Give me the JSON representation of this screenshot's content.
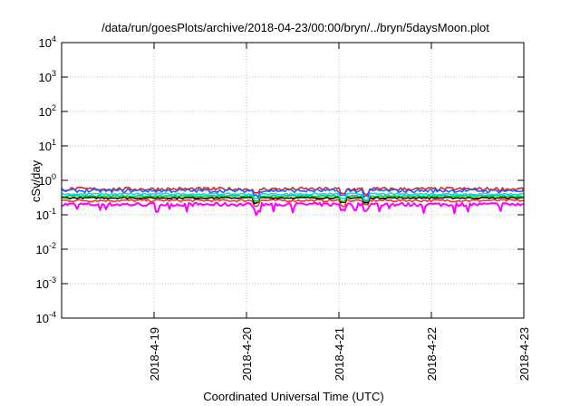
{
  "chart_data": {
    "type": "line",
    "title": "/data/run/goesPlots/archive/2018-04-23/00:00/bryn/../bryn/5daysMoon.plot",
    "xlabel": "Coordinated Universal Time (UTC)",
    "ylabel": "cSv/day",
    "y_scale": "log",
    "ylim": [
      0.0001,
      10000
    ],
    "y_ticks": [
      {
        "value": 0.0001,
        "base": "10",
        "exp": "-4"
      },
      {
        "value": 0.001,
        "base": "10",
        "exp": "-3"
      },
      {
        "value": 0.01,
        "base": "10",
        "exp": "-2"
      },
      {
        "value": 0.1,
        "base": "10",
        "exp": "-1"
      },
      {
        "value": 1,
        "base": "10",
        "exp": "0"
      },
      {
        "value": 10,
        "base": "10",
        "exp": "1"
      },
      {
        "value": 100,
        "base": "10",
        "exp": "2"
      },
      {
        "value": 1000,
        "base": "10",
        "exp": "3"
      },
      {
        "value": 10000,
        "base": "10",
        "exp": "4"
      }
    ],
    "xlim": [
      "2018-04-18T00:00",
      "2018-04-23T00:00"
    ],
    "x_ticks": [
      "2018-4-19",
      "2018-4-20",
      "2018-4-21",
      "2018-4-22",
      "2018-4-23"
    ],
    "grid": true,
    "series": [
      {
        "color": "#ff00ff",
        "base": 0.2,
        "jitter": 0.12,
        "dips": true
      },
      {
        "color": "#ff3030",
        "base": 0.26,
        "jitter": 0.08,
        "dips": false
      },
      {
        "color": "#000000",
        "base": 0.31,
        "jitter": 0.05,
        "dips": false
      },
      {
        "color": "#20c020",
        "base": 0.35,
        "jitter": 0.05,
        "dips": false
      },
      {
        "color": "#00e0e0",
        "base": 0.4,
        "jitter": 0.06,
        "dips": false
      },
      {
        "color": "#e02020",
        "base": 0.56,
        "jitter": 0.12,
        "dips": false
      },
      {
        "color": "#2060ff",
        "base": 0.5,
        "jitter": 0.12,
        "dips": false
      }
    ]
  }
}
